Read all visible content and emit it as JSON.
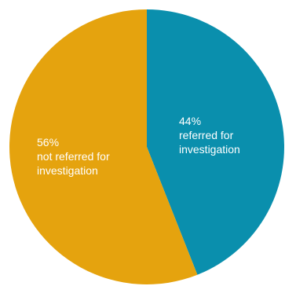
{
  "chart_data": {
    "type": "pie",
    "slices": [
      {
        "value": 44,
        "percent_label": "44%",
        "label_line1": "referred for",
        "label_line2": "investigation",
        "color": "#0a8fad"
      },
      {
        "value": 56,
        "percent_label": "56%",
        "label_line1": "not referred for",
        "label_line2": "investigation",
        "color": "#e5a30e"
      }
    ]
  }
}
